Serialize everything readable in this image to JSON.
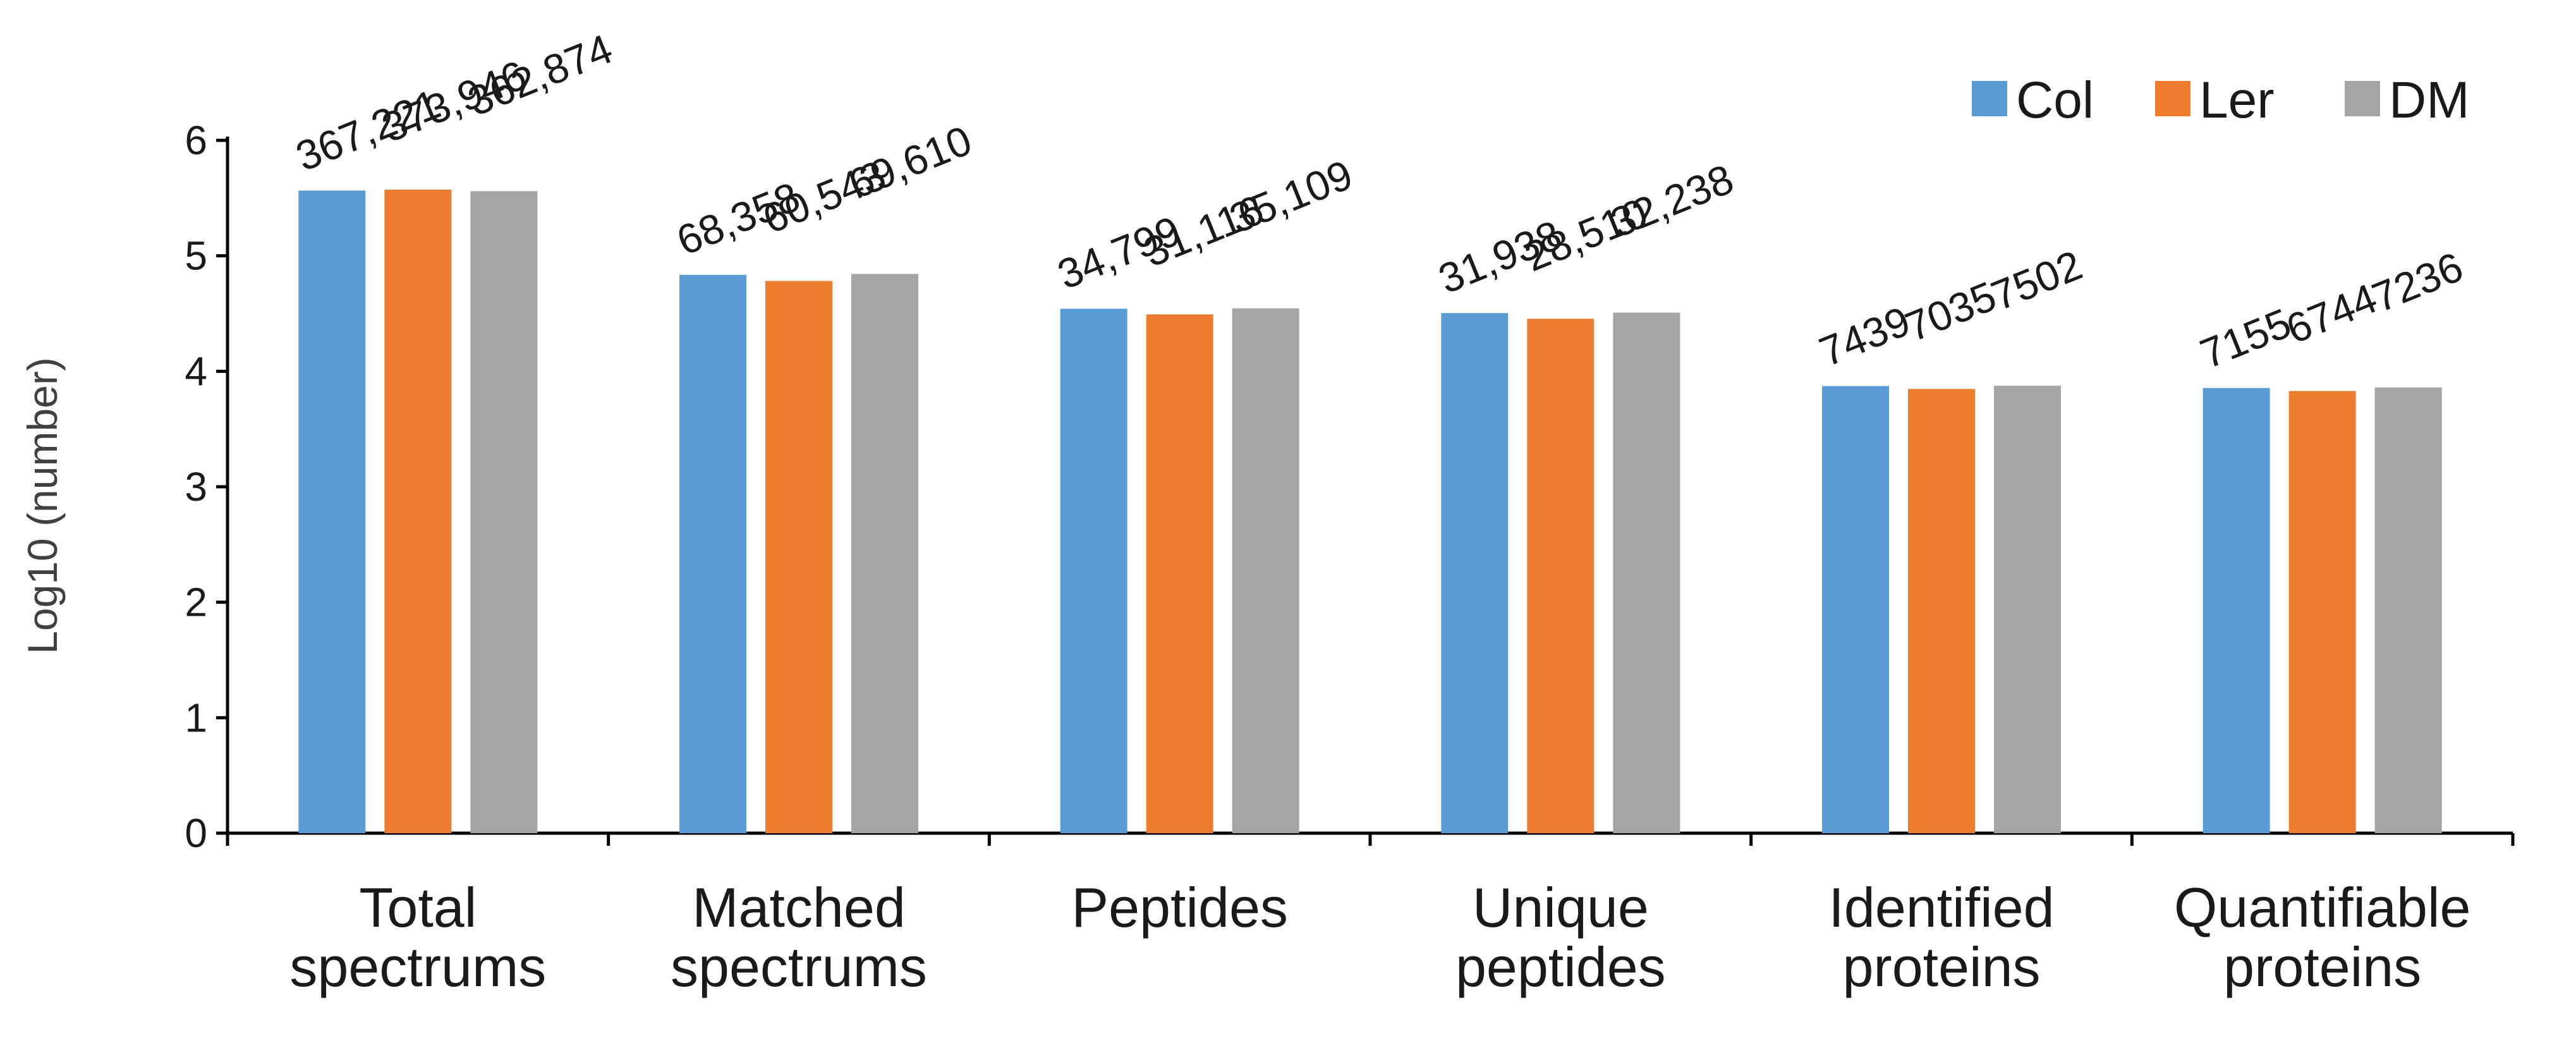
{
  "chart_data": {
    "type": "bar",
    "title": "",
    "xlabel": "",
    "ylabel": "Log10 (number)",
    "ylim": [
      0,
      6
    ],
    "yticks": [
      "0",
      "1",
      "2",
      "3",
      "4",
      "5",
      "6"
    ],
    "categories": [
      [
        "Total",
        "spectrums"
      ],
      [
        "Matched",
        "spectrums"
      ],
      [
        "Peptides"
      ],
      [
        "Unique",
        "peptides"
      ],
      [
        "Identified",
        "proteins"
      ],
      [
        "Quantifiable",
        "proteins"
      ]
    ],
    "series": [
      {
        "name": "Col",
        "color": "#5B9BD5",
        "values": [
          5.565,
          4.835,
          4.542,
          4.504,
          3.872,
          3.855
        ],
        "labels": [
          "367,221",
          "68,358",
          "34,799",
          "31,938",
          "7439",
          "7155"
        ]
      },
      {
        "name": "Ler",
        "color": "#ED7D31",
        "values": [
          5.573,
          4.782,
          4.493,
          4.455,
          3.847,
          3.829
        ],
        "labels": [
          "373,946",
          "60,543",
          "31,116",
          "28,510",
          "7035",
          "6744"
        ]
      },
      {
        "name": "DM",
        "color": "#A5A5A5",
        "values": [
          5.56,
          4.843,
          4.545,
          4.508,
          3.875,
          3.86
        ],
        "labels": [
          "362,874",
          "69,610",
          "35,109",
          "32,238",
          "7502",
          "7236"
        ]
      }
    ],
    "legend": "top-right",
    "grid": false
  }
}
